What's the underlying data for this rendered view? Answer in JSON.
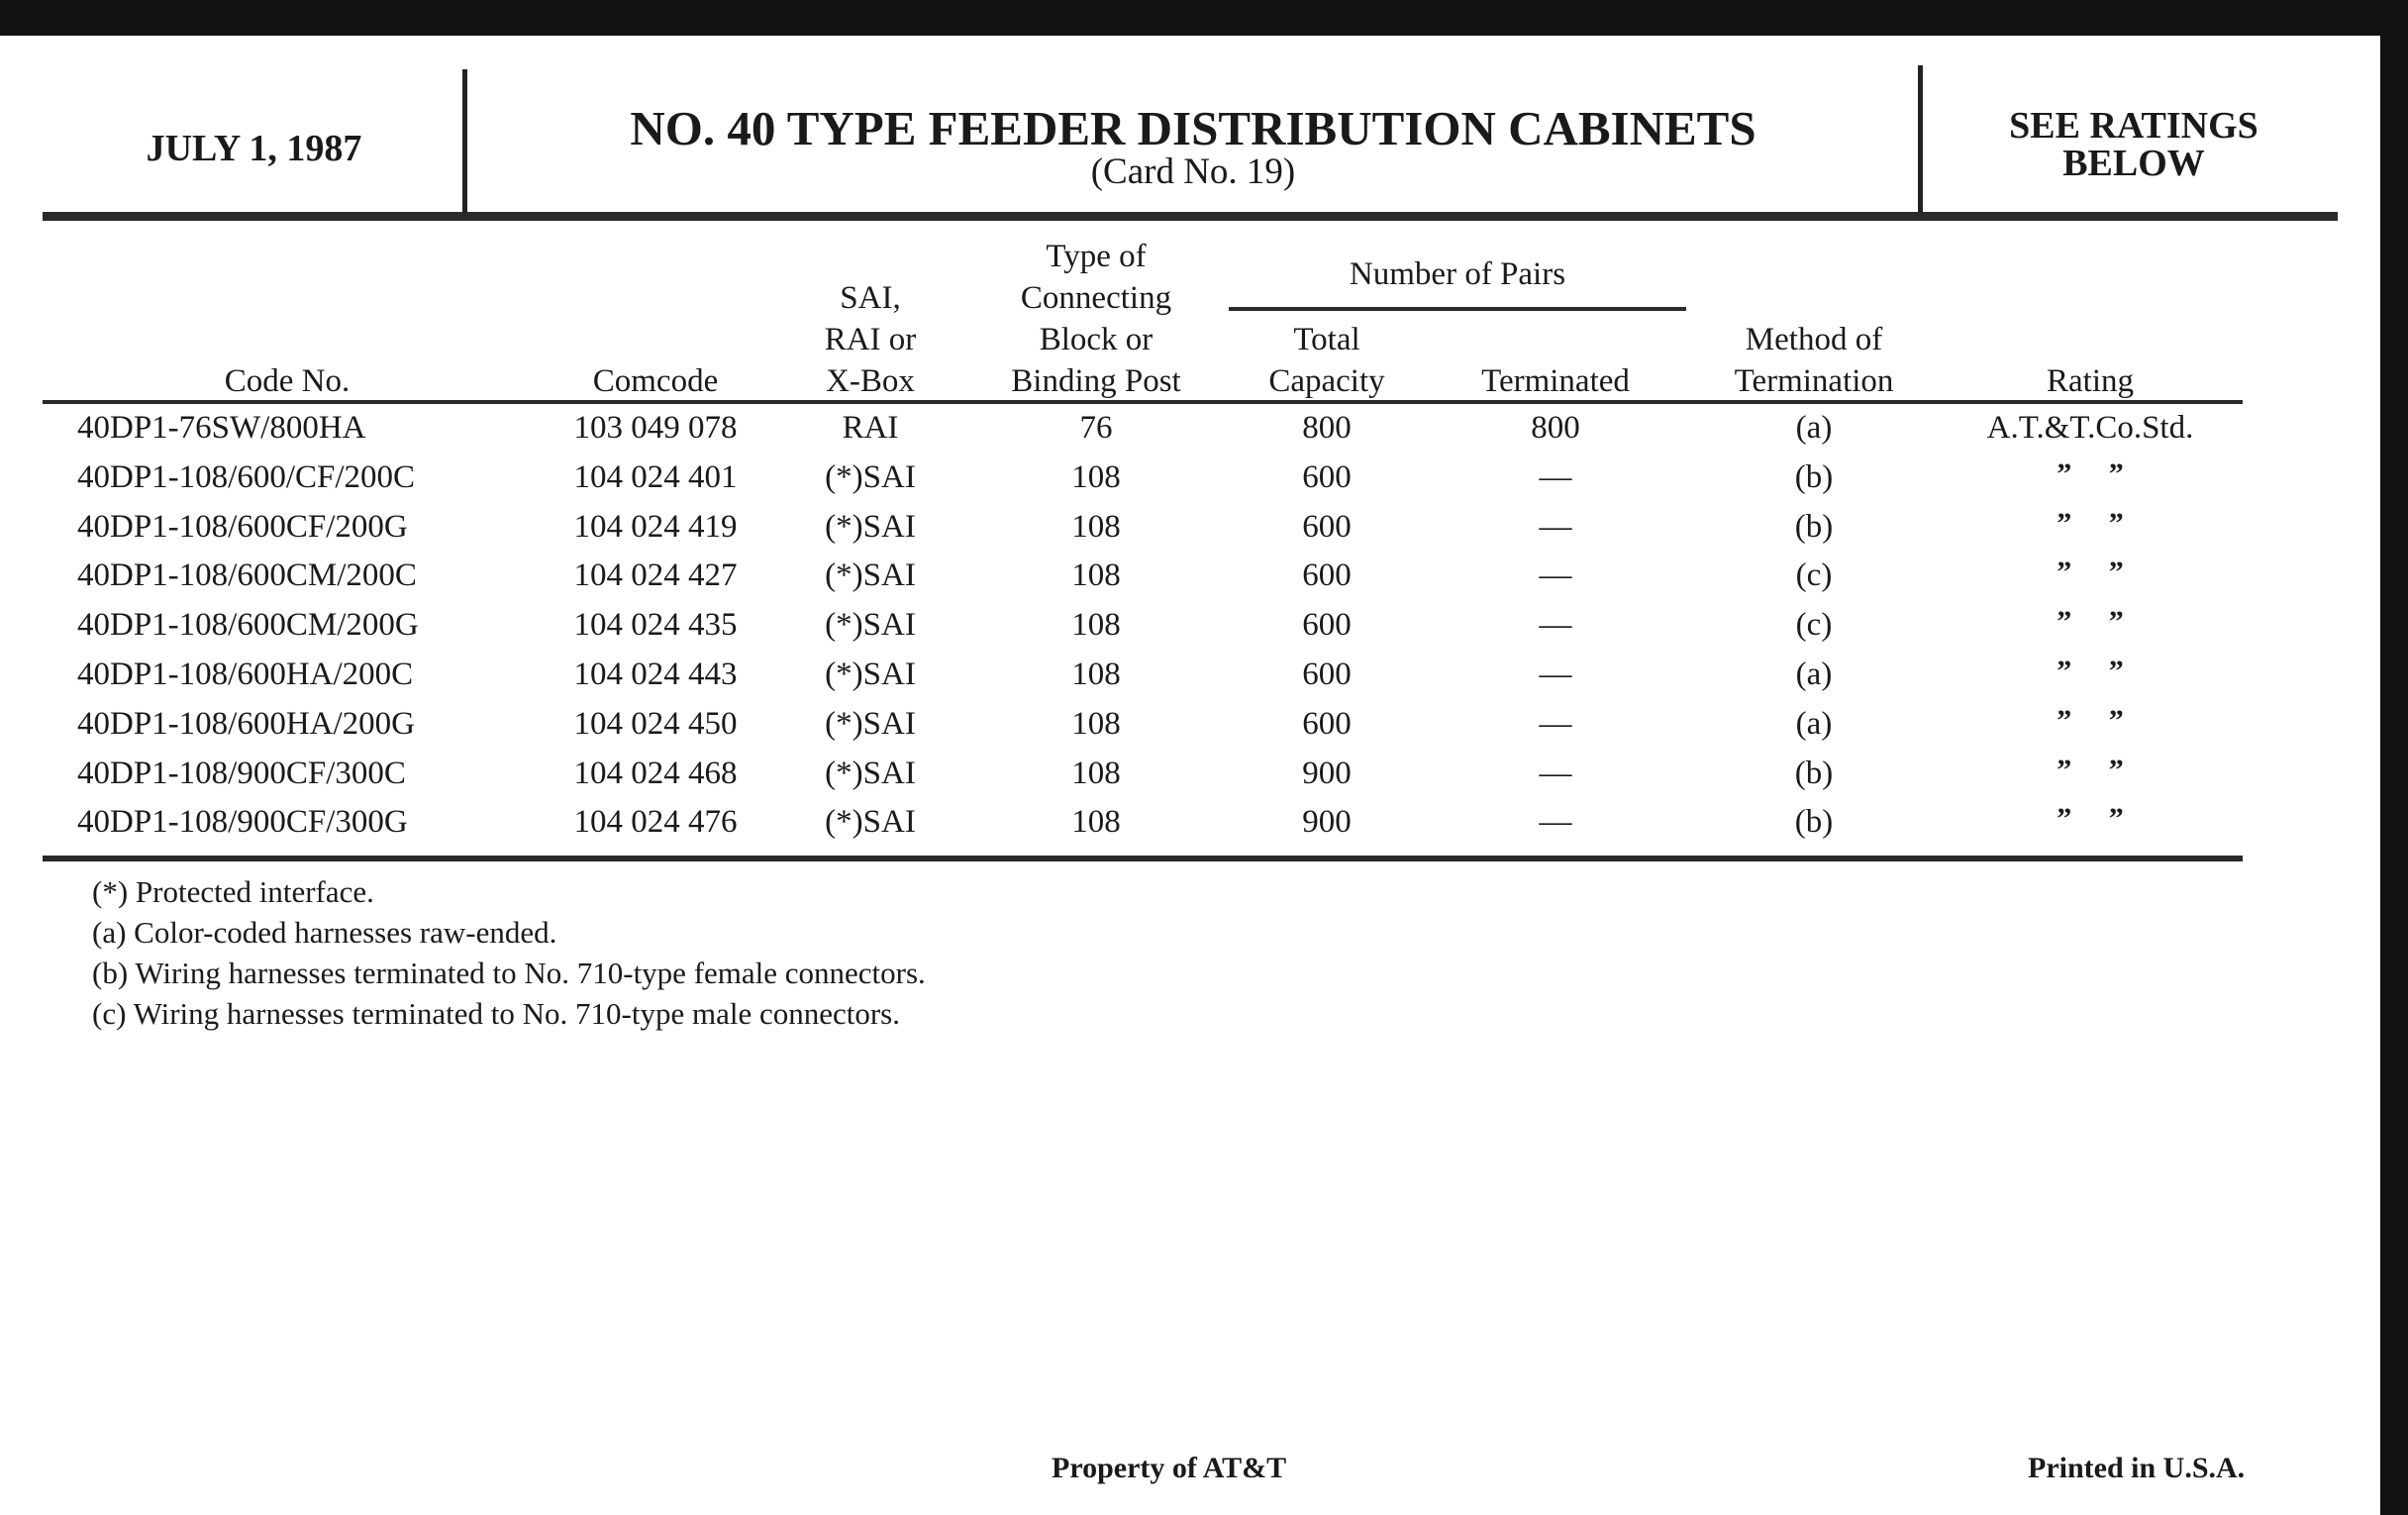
{
  "header": {
    "date": "JULY 1, 1987",
    "title": "NO. 40 TYPE FEEDER DISTRIBUTION CABINETS",
    "subtitle": "(Card No. 19)",
    "rating_note_line1": "SEE RATINGS",
    "rating_note_line2": "BELOW"
  },
  "table": {
    "group_header": "Number of Pairs",
    "columns": {
      "code": [
        "Code No."
      ],
      "comcode": [
        "Comcode"
      ],
      "box": [
        "SAI,",
        "RAI or",
        "X-Box"
      ],
      "block": [
        "Type of",
        "Connecting",
        "Block or",
        "Binding Post"
      ],
      "total": [
        "Total",
        "Capacity"
      ],
      "terminated": [
        "Terminated"
      ],
      "method": [
        "Method of",
        "Termination"
      ],
      "rating": [
        "Rating"
      ]
    },
    "rows": [
      {
        "code": "40DP1-76SW/800HA",
        "comcode": "103 049 078",
        "box": "RAI",
        "block": "76",
        "total": "800",
        "terminated": "800",
        "method": "(a)",
        "rating": "A.T.&T.Co.Std."
      },
      {
        "code": "40DP1-108/600/CF/200C",
        "comcode": "104 024 401",
        "box": "(*)SAI",
        "block": "108",
        "total": "600",
        "terminated": "—",
        "method": "(b)",
        "rating": "”  ”"
      },
      {
        "code": "40DP1-108/600CF/200G",
        "comcode": "104 024 419",
        "box": "(*)SAI",
        "block": "108",
        "total": "600",
        "terminated": "—",
        "method": "(b)",
        "rating": "”  ”"
      },
      {
        "code": "40DP1-108/600CM/200C",
        "comcode": "104 024 427",
        "box": "(*)SAI",
        "block": "108",
        "total": "600",
        "terminated": "—",
        "method": "(c)",
        "rating": "”  ”"
      },
      {
        "code": "40DP1-108/600CM/200G",
        "comcode": "104 024 435",
        "box": "(*)SAI",
        "block": "108",
        "total": "600",
        "terminated": "—",
        "method": "(c)",
        "rating": "”  ”"
      },
      {
        "code": "40DP1-108/600HA/200C",
        "comcode": "104 024 443",
        "box": "(*)SAI",
        "block": "108",
        "total": "600",
        "terminated": "—",
        "method": "(a)",
        "rating": "”  ”"
      },
      {
        "code": "40DP1-108/600HA/200G",
        "comcode": "104 024 450",
        "box": "(*)SAI",
        "block": "108",
        "total": "600",
        "terminated": "—",
        "method": "(a)",
        "rating": "”  ”"
      },
      {
        "code": "40DP1-108/900CF/300C",
        "comcode": "104 024 468",
        "box": "(*)SAI",
        "block": "108",
        "total": "900",
        "terminated": "—",
        "method": "(b)",
        "rating": "”  ”"
      },
      {
        "code": "40DP1-108/900CF/300G",
        "comcode": "104 024 476",
        "box": "(*)SAI",
        "block": "108",
        "total": "900",
        "terminated": "—",
        "method": "(b)",
        "rating": "”  ”"
      }
    ]
  },
  "notes": [
    "(*) Protected interface.",
    "(a) Color-coded harnesses raw-ended.",
    "(b) Wiring harnesses terminated to No. 710-type female connectors.",
    "(c) Wiring harnesses terminated to No. 710-type male connectors."
  ],
  "footer": {
    "property": "Property of AT&T",
    "printed": "Printed in U.S.A."
  }
}
